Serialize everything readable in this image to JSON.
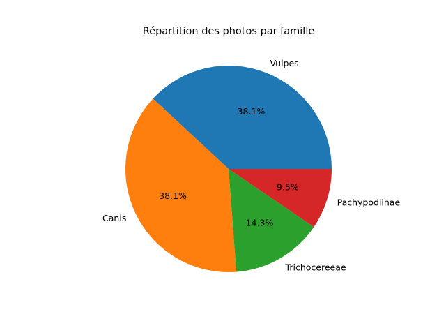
{
  "chart_data": {
    "type": "pie",
    "title": "Répartition des photos par famille",
    "categories": [
      "Vulpes",
      "Canis",
      "Trichocereeae",
      "Pachypodiinae"
    ],
    "values": [
      38.1,
      38.1,
      14.3,
      9.5
    ],
    "percent_labels": [
      "38.1%",
      "38.1%",
      "14.3%",
      "9.5%"
    ],
    "colors": [
      "#1f77b4",
      "#ff7f0e",
      "#2ca02c",
      "#d62728"
    ],
    "start_angle_deg": 0,
    "direction": "counterclockwise",
    "legend": "none"
  }
}
